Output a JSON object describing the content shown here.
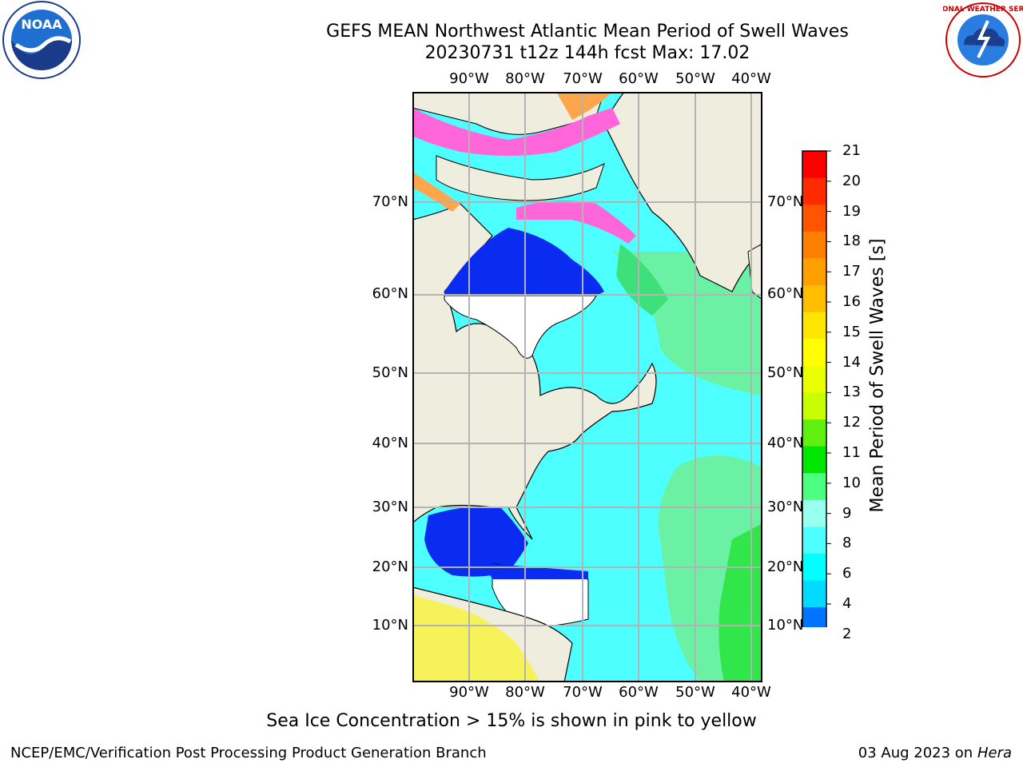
{
  "header": {
    "title_line1": "GEFS MEAN Northwest Atlantic Mean Period of Swell Waves",
    "title_line2": "20230731 t12z 144h fcst   Max: 17.02"
  },
  "logos": {
    "left": {
      "icon": "noaa-logo-icon",
      "text": "NOAA"
    },
    "right": {
      "icon": "nws-logo-icon",
      "text": "NATIONAL WEATHER SERVICE"
    }
  },
  "map": {
    "lon_labels": [
      "90°W",
      "80°W",
      "70°W",
      "60°W",
      "50°W",
      "40°W"
    ],
    "lat_labels": [
      "70°N",
      "60°N",
      "50°N",
      "40°N",
      "30°N",
      "20°N",
      "10°N"
    ],
    "colors": {
      "land": "#efedde",
      "ice_pink": "#ff66d9",
      "ice_orange": "#ffa64d",
      "swell_cyan": "#4dffff",
      "swell_deep": "#0a2cf0",
      "swell_green": "#4df083",
      "swell_yellow": "#ffff00",
      "grid": "#b3b3b3"
    }
  },
  "colorbar": {
    "title": "Mean Period of Swell Waves [s]",
    "ticks": [
      "21",
      "20",
      "19",
      "18",
      "17",
      "16",
      "15",
      "14",
      "13",
      "12",
      "11",
      "10",
      "9",
      "8",
      "6",
      "4",
      "2"
    ],
    "colors_top_to_bottom": [
      "#ff0000",
      "#ff2a00",
      "#ff5500",
      "#ff7f00",
      "#ff9f00",
      "#ffbf00",
      "#ffe600",
      "#ffff00",
      "#eaff00",
      "#c8ff00",
      "#5ff00f",
      "#00e600",
      "#4dff80",
      "#99ffee",
      "#4dffff",
      "#00ffff",
      "#00dbff",
      "#0073ff"
    ],
    "extend_color": "#0000ff"
  },
  "footer": {
    "caption": "Sea Ice Concentration > 15% is shown in pink to yellow",
    "credit": "NCEP/EMC/Verification Post Processing Product Generation Branch",
    "date": "03 Aug 2023 on",
    "machine": "Hera"
  }
}
